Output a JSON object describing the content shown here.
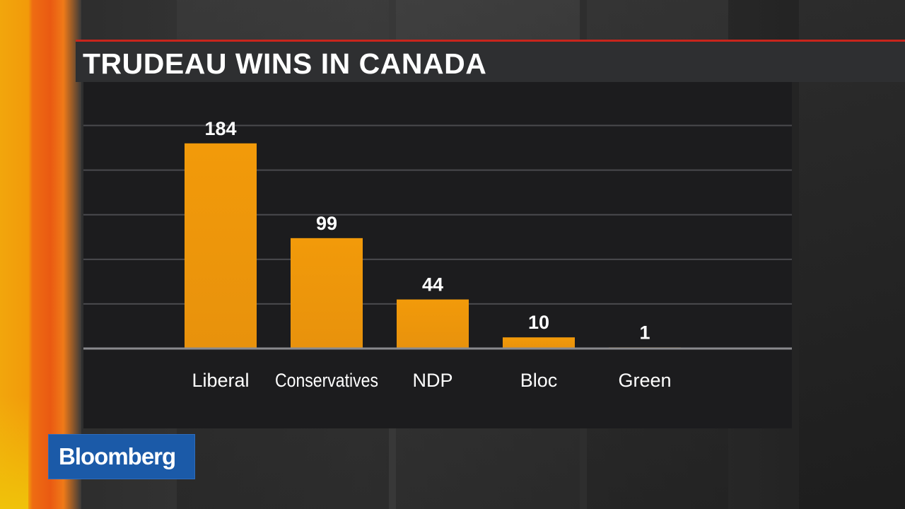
{
  "broadcast": {
    "logo_text": "Bloomberg",
    "accent_color": "#c8251c",
    "logo_color": "#1b5aa8",
    "stripe_color": "#ee6c12"
  },
  "chart_data": {
    "type": "bar",
    "title": "TRUDEAU WINS IN CANADA",
    "categories": [
      "Liberal",
      "Conservatives",
      "NDP",
      "Bloc",
      "Green"
    ],
    "values": [
      184,
      99,
      44,
      10,
      1
    ],
    "data_labels": [
      "184",
      "99",
      "44",
      "10",
      "1"
    ],
    "xlabel": "",
    "ylabel": "",
    "ylim": [
      0,
      220
    ],
    "grid": true,
    "legend": "none",
    "bar_color": "#f29a0a"
  }
}
